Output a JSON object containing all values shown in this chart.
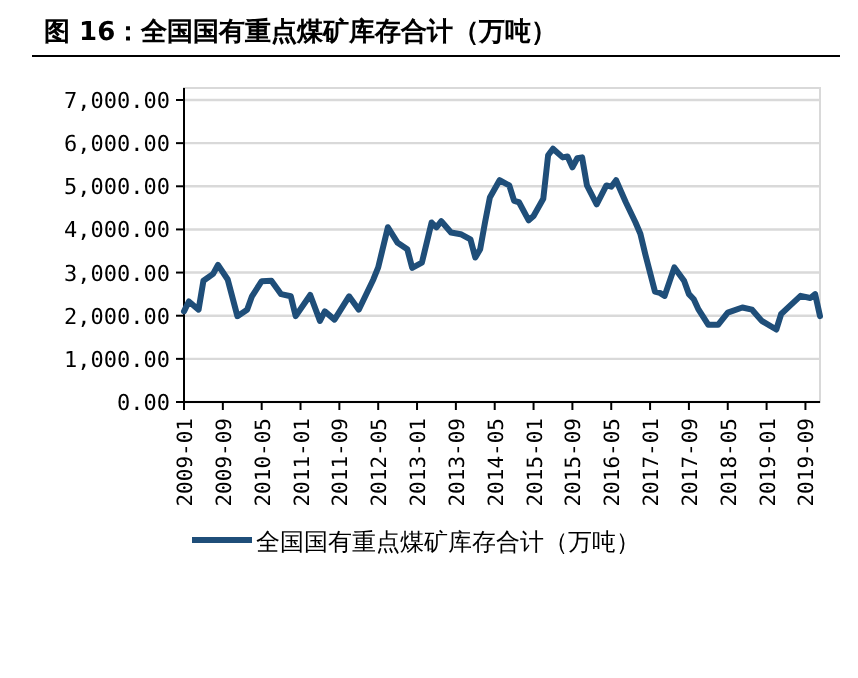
{
  "chart_data": {
    "type": "line",
    "title": "图 16：全国国有重点煤矿库存合计（万吨）",
    "x": [
      "2009-01",
      "2009-02",
      "2009-04",
      "2009-05",
      "2009-07",
      "2009-08",
      "2009-10",
      "2009-12",
      "2010-02",
      "2010-03",
      "2010-05",
      "2010-07",
      "2010-09",
      "2010-11",
      "2010-12",
      "2011-03",
      "2011-05",
      "2011-06",
      "2011-08",
      "2011-11",
      "2012-01",
      "2012-04",
      "2012-05",
      "2012-07",
      "2012-09",
      "2012-11",
      "2012-12",
      "2013-02",
      "2013-04",
      "2013-05",
      "2013-06",
      "2013-08",
      "2013-10",
      "2013-12",
      "2014-01",
      "2014-02",
      "2014-03",
      "2014-04",
      "2014-06",
      "2014-08",
      "2014-09",
      "2014-10",
      "2014-12",
      "2015-01",
      "2015-03",
      "2015-04",
      "2015-05",
      "2015-07",
      "2015-08",
      "2015-09",
      "2015-10",
      "2015-11",
      "2015-12",
      "2016-02",
      "2016-04",
      "2016-05",
      "2016-06",
      "2016-08",
      "2016-10",
      "2016-11",
      "2016-12",
      "2017-02",
      "2017-03",
      "2017-04",
      "2017-06",
      "2017-08",
      "2017-09",
      "2017-10",
      "2017-11",
      "2018-01",
      "2018-03",
      "2018-05",
      "2018-08",
      "2018-10",
      "2018-12",
      "2019-03",
      "2019-04",
      "2019-06",
      "2019-08",
      "2019-10",
      "2019-11",
      "2019-12"
    ],
    "series": [
      {
        "name": "全国国有重点煤矿库存合计（万吨）",
        "color": "#1f4e79",
        "values": [
          2100,
          2330,
          2140,
          2810,
          2970,
          3180,
          2840,
          1990,
          2140,
          2450,
          2800,
          2810,
          2500,
          2450,
          1990,
          2480,
          1880,
          2100,
          1910,
          2450,
          2140,
          2840,
          3120,
          4050,
          3690,
          3540,
          3110,
          3230,
          4160,
          4050,
          4190,
          3930,
          3890,
          3770,
          3350,
          3540,
          4160,
          4740,
          5140,
          5020,
          4660,
          4630,
          4210,
          4310,
          4710,
          5720,
          5870,
          5670,
          5690,
          5440,
          5650,
          5670,
          5020,
          4580,
          5020,
          4990,
          5140,
          4630,
          4160,
          3900,
          3430,
          2560,
          2530,
          2460,
          3120,
          2810,
          2500,
          2380,
          2140,
          1790,
          1790,
          2070,
          2190,
          2140,
          1880,
          1680,
          2040,
          2250,
          2460,
          2410,
          2500,
          1990
        ]
      }
    ],
    "xlim": [
      "2009-01",
      "2019-12"
    ],
    "xticks": [
      "2009-01",
      "2009-09",
      "2010-05",
      "2011-01",
      "2011-09",
      "2012-05",
      "2013-01",
      "2013-09",
      "2014-05",
      "2015-01",
      "2015-09",
      "2016-05",
      "2017-01",
      "2017-09",
      "2018-05",
      "2019-01",
      "2019-09"
    ],
    "ylim": [
      0,
      7000
    ],
    "yticks": [
      {
        "value": 0,
        "label": "0.00"
      },
      {
        "value": 1000,
        "label": "1,000.00"
      },
      {
        "value": 2000,
        "label": "2,000.00"
      },
      {
        "value": 3000,
        "label": "3,000.00"
      },
      {
        "value": 4000,
        "label": "4,000.00"
      },
      {
        "value": 5000,
        "label": "5,000.00"
      },
      {
        "value": 6000,
        "label": "6,000.00"
      },
      {
        "value": 7000,
        "label": "7,000.00"
      }
    ],
    "grid": "y",
    "legend": "bottom",
    "line_style": "solid"
  }
}
